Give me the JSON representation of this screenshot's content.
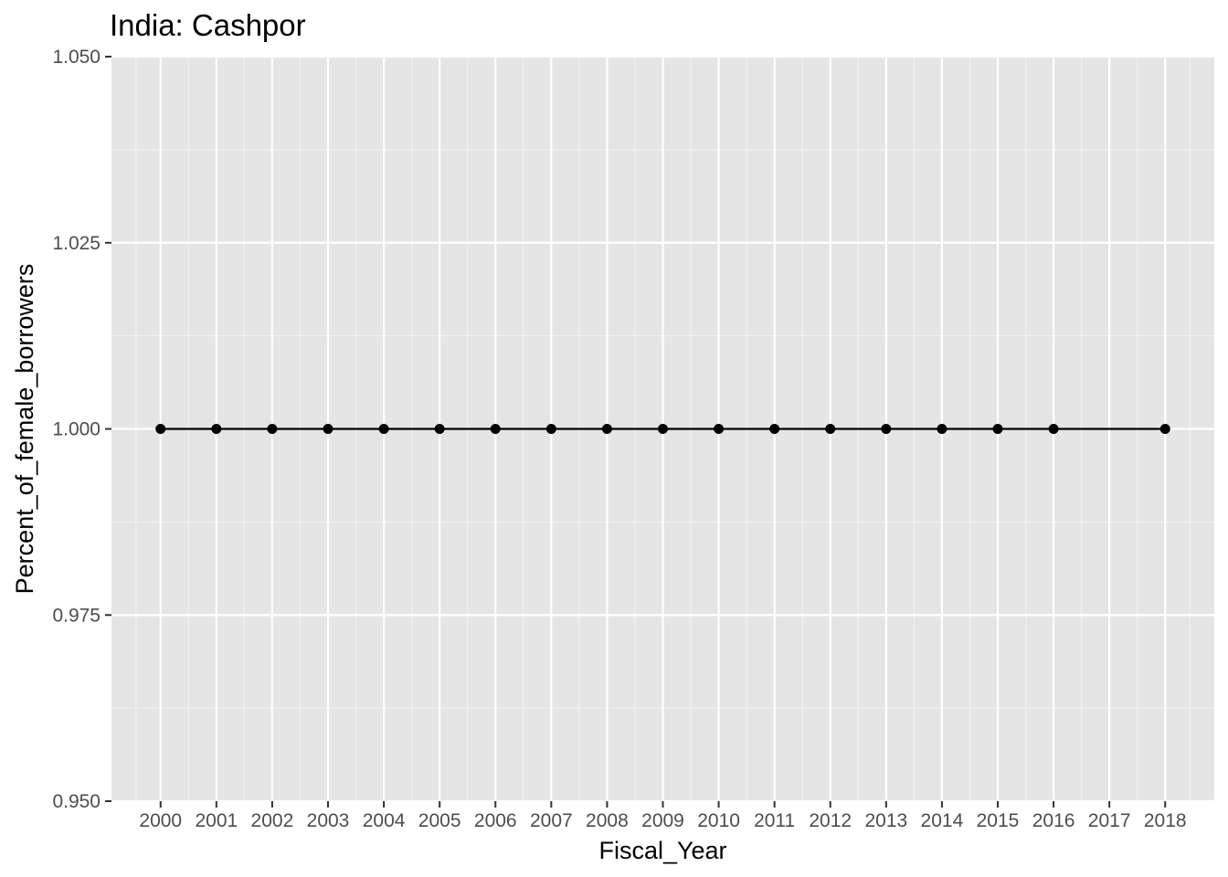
{
  "chart_data": {
    "type": "line",
    "title": "India:  Cashpor",
    "xlabel": "Fiscal_Year",
    "ylabel": "Percent_of_female_borrowers",
    "x_ticks": [
      "2000",
      "2001",
      "2002",
      "2003",
      "2004",
      "2005",
      "2006",
      "2007",
      "2008",
      "2009",
      "2010",
      "2011",
      "2012",
      "2013",
      "2014",
      "2015",
      "2016",
      "2017",
      "2018"
    ],
    "y_ticks": [
      "0.950",
      "0.975",
      "1.000",
      "1.025",
      "1.050"
    ],
    "xlim": [
      1999.12,
      2018.88
    ],
    "ylim": [
      0.95,
      1.05
    ],
    "grid": true,
    "legend": "none",
    "series": [
      {
        "color": "#000000",
        "points": [
          {
            "x": 2000,
            "y": 1.0
          },
          {
            "x": 2001,
            "y": 1.0
          },
          {
            "x": 2002,
            "y": 1.0
          },
          {
            "x": 2003,
            "y": 1.0
          },
          {
            "x": 2004,
            "y": 1.0
          },
          {
            "x": 2005,
            "y": 1.0
          },
          {
            "x": 2006,
            "y": 1.0
          },
          {
            "x": 2007,
            "y": 1.0
          },
          {
            "x": 2008,
            "y": 1.0
          },
          {
            "x": 2009,
            "y": 1.0
          },
          {
            "x": 2010,
            "y": 1.0
          },
          {
            "x": 2011,
            "y": 1.0
          },
          {
            "x": 2012,
            "y": 1.0
          },
          {
            "x": 2013,
            "y": 1.0
          },
          {
            "x": 2014,
            "y": 1.0
          },
          {
            "x": 2015,
            "y": 1.0
          },
          {
            "x": 2016,
            "y": 1.0
          },
          {
            "x": 2018,
            "y": 1.0
          }
        ]
      }
    ],
    "colors": {
      "panel": "#e5e5e5",
      "grid_major": "#ffffff",
      "grid_minor": "#f2f2f2",
      "tick_label": "#4d4d4d",
      "tick_mark": "#333333"
    }
  }
}
